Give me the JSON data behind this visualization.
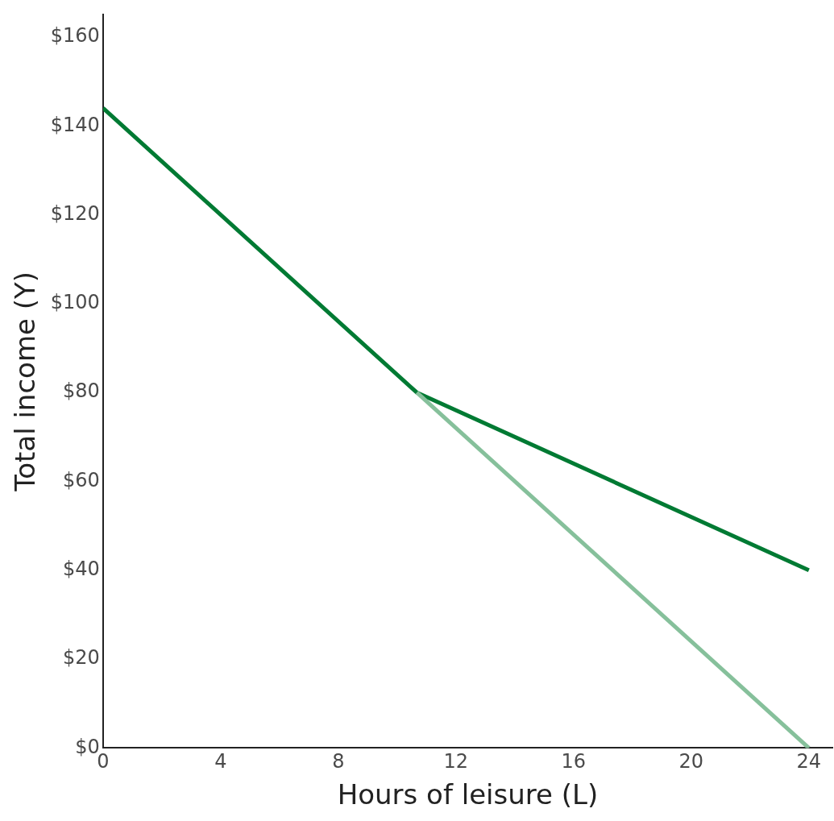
{
  "chart_data": {
    "type": "line",
    "xlabel": "Hours of leisure (L)",
    "ylabel": "Total income (Y)",
    "xlim": [
      0,
      24.8
    ],
    "ylim": [
      0,
      165
    ],
    "xticks": [
      0,
      4,
      8,
      12,
      16,
      20,
      24
    ],
    "yticks": [
      {
        "value": 0,
        "label": "$0"
      },
      {
        "value": 20,
        "label": "$20"
      },
      {
        "value": 40,
        "label": "$40"
      },
      {
        "value": 60,
        "label": "$60"
      },
      {
        "value": 80,
        "label": "$80"
      },
      {
        "value": 100,
        "label": "$100"
      },
      {
        "value": 120,
        "label": "$120"
      },
      {
        "value": 140,
        "label": "$140"
      },
      {
        "value": 160,
        "label": "$160"
      }
    ],
    "grid": false,
    "legend": false,
    "marker": "none",
    "line_style": "solid",
    "series": [
      {
        "color": "#86c09b",
        "x": [
          10.67,
          24
        ],
        "values": [
          80,
          0
        ]
      },
      {
        "color": "#007a33",
        "x": [
          0,
          10.67,
          24
        ],
        "values": [
          144,
          80,
          40
        ]
      }
    ]
  }
}
